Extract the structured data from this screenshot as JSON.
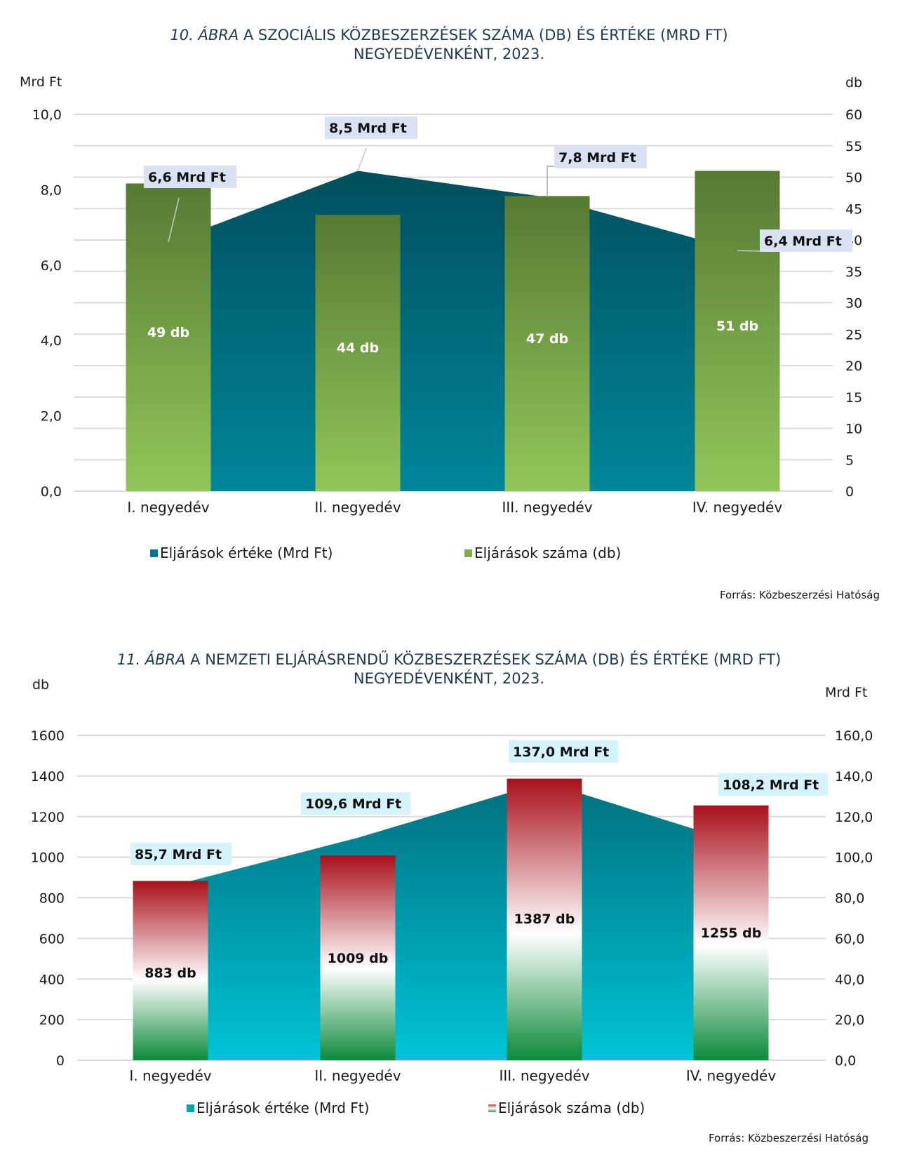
{
  "chart_data": [
    {
      "type": "bar",
      "combo": "bar+area",
      "title_prefix": "10. ÁBRA",
      "title_line1": " A SZOCIÁLIS KÖZBESZERZÉSEK SZÁMA (DB) ÉS ÉRTÉKE (MRD FT)",
      "title_line2": "NEGYEDÉVENKÉNT, 2023.",
      "categories": [
        "I. negyedév",
        "II. negyedév",
        "III. negyedév",
        "IV. negyedév"
      ],
      "series": [
        {
          "name": "Eljárások értéke (Mrd Ft)",
          "type": "area",
          "axis": "left",
          "values": [
            6.6,
            8.5,
            7.8,
            6.4
          ],
          "labels": [
            "6,6 Mrd Ft",
            "8,5 Mrd Ft",
            "7,8 Mrd Ft",
            "6,4 Mrd Ft"
          ],
          "color": "#00788a"
        },
        {
          "name": "Eljárások száma (db)",
          "type": "bar",
          "axis": "right",
          "values": [
            49,
            44,
            47,
            51
          ],
          "labels": [
            "49 db",
            "44 db",
            "47 db",
            "51 db"
          ],
          "color": "#7cb04c"
        }
      ],
      "left_axis": {
        "label": "Mrd Ft",
        "range": [
          0,
          10
        ],
        "ticks": [
          "0,0",
          "2,0",
          "4,0",
          "6,0",
          "8,0",
          "10,0"
        ]
      },
      "right_axis": {
        "label": "db",
        "range": [
          0,
          60
        ],
        "ticks": [
          "0",
          "5",
          "10",
          "15",
          "20",
          "25",
          "30",
          "35",
          "40",
          "45",
          "50",
          "55",
          "60"
        ]
      },
      "grid": true,
      "legend_position": "bottom",
      "source": "Forrás: Közbeszerzési Hatóság"
    },
    {
      "type": "bar",
      "combo": "bar+area",
      "title_prefix": "11. ÁBRA",
      "title_line1": " A NEMZETI ELJÁRÁSRENDŰ KÖZBESZERZÉSEK SZÁMA (DB) ÉS ÉRTÉKE (MRD FT)",
      "title_line2": "NEGYEDÉVENKÉNT, 2023.",
      "categories": [
        "I. negyedév",
        "II. negyedév",
        "III. negyedév",
        "IV. negyedév"
      ],
      "series": [
        {
          "name": "Eljárások értéke (Mrd Ft)",
          "type": "area",
          "axis": "right",
          "values": [
            85.7,
            109.6,
            137.0,
            108.2
          ],
          "labels": [
            "85,7 Mrd Ft",
            "109,6 Mrd Ft",
            "137,0 Mrd Ft",
            "108,2 Mrd Ft"
          ],
          "color": "#00a3b4"
        },
        {
          "name": "Eljárások száma (db)",
          "type": "bar",
          "axis": "left",
          "values": [
            883,
            1009,
            1387,
            1255
          ],
          "labels": [
            "883 db",
            "1009 db",
            "1387 db",
            "1255 db"
          ],
          "color": "#c0392b"
        }
      ],
      "left_axis": {
        "label": "db",
        "range": [
          0,
          1600
        ],
        "ticks": [
          "0",
          "200",
          "400",
          "600",
          "800",
          "1000",
          "1200",
          "1400",
          "1600"
        ]
      },
      "right_axis": {
        "label": "Mrd Ft",
        "range": [
          0,
          160
        ],
        "ticks": [
          "0,0",
          "20,0",
          "40,0",
          "60,0",
          "80,0",
          "100,0",
          "120,0",
          "140,0",
          "160,0"
        ]
      },
      "grid": true,
      "legend_position": "bottom",
      "source": "Forrás: Közbeszerzési Hatóság"
    }
  ]
}
